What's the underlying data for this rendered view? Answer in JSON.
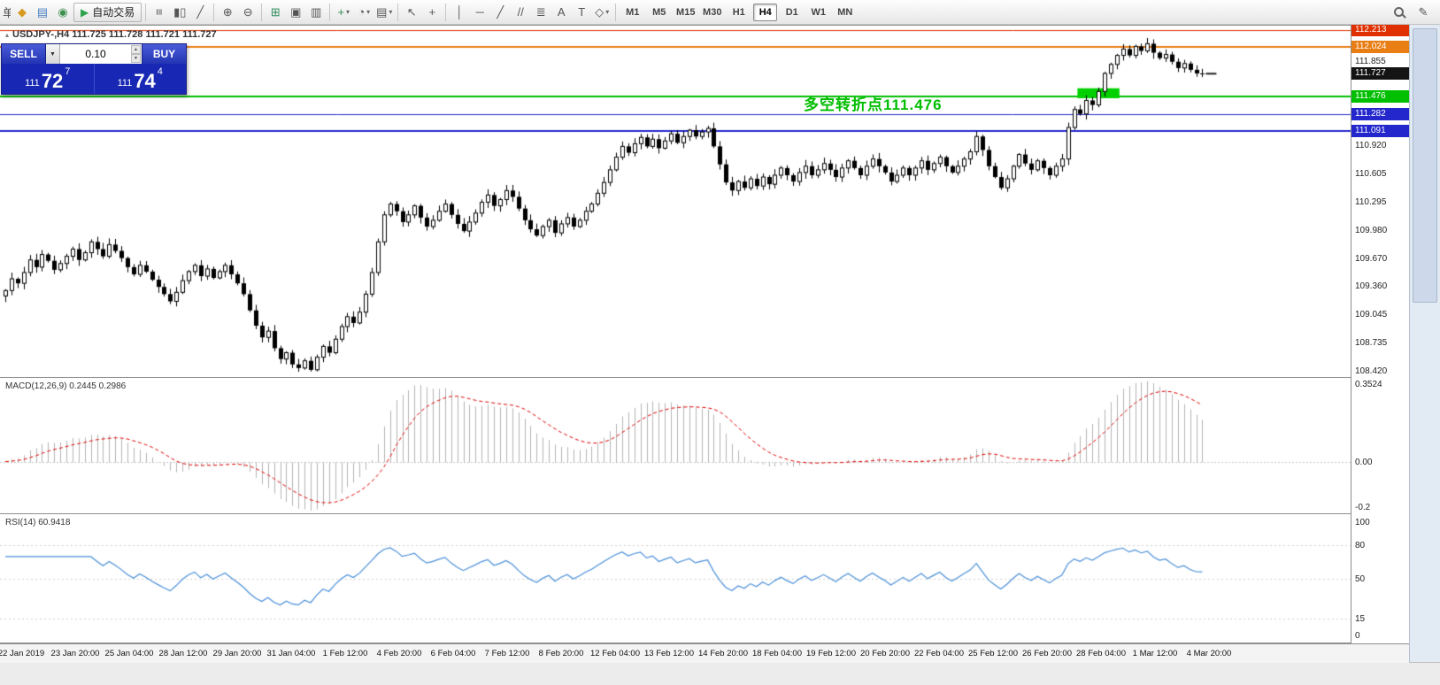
{
  "toolbar": {
    "groups": [
      {
        "items": [
          {
            "name": "new-order-button-cut",
            "glyph": "单",
            "cut": true
          },
          {
            "name": "new-chart-icon",
            "glyph": "◆",
            "color": "#D79A20"
          },
          {
            "name": "profiles-icon",
            "glyph": "▤",
            "color": "#4A7FC0"
          },
          {
            "name": "refresh-icon",
            "glyph": "◉",
            "color": "#3C8F4C"
          },
          {
            "name": "autotrading-button",
            "glyph": "▶",
            "color": "#2EA44F",
            "label": "自动交易"
          }
        ]
      },
      {
        "items": [
          {
            "name": "bar-chart-icon",
            "glyph": "≡",
            "rot": true
          },
          {
            "name": "candlestick-chart-icon",
            "glyph": "▮▯"
          },
          {
            "name": "line-chart-icon",
            "glyph": "╱"
          }
        ]
      },
      {
        "items": [
          {
            "name": "zoom-in-icon",
            "glyph": "⊕"
          },
          {
            "name": "zoom-out-icon",
            "glyph": "⊖"
          }
        ]
      },
      {
        "items": [
          {
            "name": "tile-windows-icon",
            "glyph": "⊞",
            "color": "#2E8B57"
          },
          {
            "name": "cascade-windows-icon",
            "glyph": "▣"
          },
          {
            "name": "auto-scroll-icon",
            "glyph": "▥"
          }
        ]
      },
      {
        "items": [
          {
            "name": "indicators-icon",
            "glyph": "+",
            "color": "#2E8B57",
            "dd": true
          },
          {
            "name": "periods-icon",
            "glyph": "◔",
            "dd": true
          },
          {
            "name": "templates-icon",
            "glyph": "▤",
            "dd": true
          }
        ]
      },
      {
        "items": [
          {
            "name": "cursor-icon",
            "glyph": "↖"
          },
          {
            "name": "crosshair-icon",
            "glyph": "+"
          }
        ]
      },
      {
        "items": [
          {
            "name": "vertical-line-icon",
            "glyph": "│"
          },
          {
            "name": "horizontal-line-icon",
            "glyph": "─"
          },
          {
            "name": "trendline-icon",
            "glyph": "╱"
          },
          {
            "name": "channel-icon",
            "glyph": "//"
          },
          {
            "name": "fibonacci-icon",
            "glyph": "≣"
          },
          {
            "name": "text-icon",
            "glyph": "A"
          },
          {
            "name": "text-label-icon",
            "glyph": "T"
          },
          {
            "name": "shapes-icon",
            "glyph": "◇",
            "dd": true
          }
        ]
      }
    ],
    "timeframes": [
      "M1",
      "M5",
      "M15",
      "M30",
      "H1",
      "H4",
      "D1",
      "W1",
      "MN"
    ],
    "active_timeframe": "H4",
    "right_icons": [
      {
        "name": "search-icon",
        "css": "magnifier"
      },
      {
        "name": "edit-icon",
        "glyph": "✎"
      }
    ]
  },
  "chart": {
    "title": "USDJPY-,H4 111.725 111.728 111.721 111.727",
    "title_icon_glyph": "▴",
    "symbol": "USDJPY-",
    "period": "H4",
    "price_range": {
      "max": 112.26,
      "min": 108.37
    },
    "axis_labels": [
      "111.855",
      "110.920",
      "110.605",
      "110.295",
      "109.980",
      "109.670",
      "109.360",
      "109.045",
      "108.735",
      "108.420"
    ],
    "levels": [
      {
        "price": 112.213,
        "label": "112.213",
        "color": "#E03000",
        "width": 1
      },
      {
        "price": 112.024,
        "label": "112.024",
        "color": "#E87E14",
        "width": 2
      },
      {
        "price": 111.727,
        "label": "111.727",
        "color": "#141414",
        "width": 0,
        "current": true
      },
      {
        "price": 111.476,
        "label": "111.476",
        "color": "#00BE00",
        "width": 2
      },
      {
        "price": 111.282,
        "label": "111.282",
        "color": "#2428CC",
        "width": 1
      },
      {
        "price": 111.091,
        "label": "111.091",
        "color": "#2428CC",
        "width": 2
      }
    ],
    "annotation": {
      "text": "多空转折点111.476",
      "color": "#00BE00"
    },
    "highlight_box": {
      "start_idx": 176,
      "end_idx": 182,
      "price_top": 111.565,
      "price_bottom": 111.455,
      "color": "#00D000"
    },
    "candle_colors": {
      "bull": "#FFFFFF",
      "bear": "#000000",
      "outline": "#000000"
    }
  },
  "trade_panel": {
    "sell_label": "SELL",
    "buy_label": "BUY",
    "volume": "0.10",
    "dropdown_glyph": "▼",
    "volume_up_glyph": "▲",
    "volume_down_glyph": "▼",
    "sell_price": {
      "prefix": "111",
      "big": "72",
      "sup": "7"
    },
    "buy_price": {
      "prefix": "111",
      "big": "74",
      "sup": "4"
    }
  },
  "chart_data": {
    "type": "candlestick",
    "symbol": "USDJPY",
    "timeframe": "H4",
    "x_labels": [
      "22 Jan 2019",
      "23 Jan 20:00",
      "25 Jan 04:00",
      "28 Jan 12:00",
      "29 Jan 20:00",
      "31 Jan 04:00",
      "1 Feb 12:00",
      "4 Feb 20:00",
      "6 Feb 04:00",
      "7 Feb 12:00",
      "8 Feb 20:00",
      "12 Feb 04:00",
      "13 Feb 12:00",
      "14 Feb 20:00",
      "18 Feb 04:00",
      "19 Feb 12:00",
      "20 Feb 20:00",
      "22 Feb 04:00",
      "25 Feb 12:00",
      "26 Feb 20:00",
      "28 Feb 04:00",
      "1 Mar 12:00",
      "4 Mar 20:00"
    ],
    "ohlc_current": {
      "open": 111.725,
      "high": 111.728,
      "low": 111.721,
      "close": 111.727
    },
    "closes": [
      109.32,
      109.45,
      109.4,
      109.52,
      109.66,
      109.58,
      109.72,
      109.65,
      109.55,
      109.62,
      109.7,
      109.78,
      109.66,
      109.74,
      109.86,
      109.78,
      109.7,
      109.83,
      109.76,
      109.68,
      109.58,
      109.5,
      109.6,
      109.53,
      109.44,
      109.36,
      109.28,
      109.2,
      109.3,
      109.43,
      109.53,
      109.6,
      109.48,
      109.56,
      109.46,
      109.53,
      109.6,
      109.5,
      109.4,
      109.28,
      109.1,
      108.93,
      108.8,
      108.87,
      108.68,
      108.56,
      108.63,
      108.5,
      108.46,
      108.54,
      108.44,
      108.58,
      108.7,
      108.63,
      108.78,
      108.92,
      109.03,
      108.96,
      109.08,
      109.28,
      109.52,
      109.86,
      110.16,
      110.28,
      110.2,
      110.08,
      110.16,
      110.26,
      110.13,
      110.03,
      110.1,
      110.2,
      110.28,
      110.16,
      110.06,
      109.98,
      110.08,
      110.18,
      110.3,
      110.38,
      110.26,
      110.33,
      110.43,
      110.36,
      110.23,
      110.1,
      110.0,
      109.93,
      110.03,
      110.1,
      109.96,
      110.06,
      110.13,
      110.03,
      110.1,
      110.2,
      110.28,
      110.4,
      110.52,
      110.66,
      110.8,
      110.92,
      110.85,
      110.95,
      111.02,
      110.92,
      111.0,
      110.9,
      110.98,
      111.06,
      110.96,
      111.03,
      111.1,
      111.03,
      111.08,
      111.12,
      110.92,
      110.72,
      110.52,
      110.43,
      110.53,
      110.46,
      110.56,
      110.48,
      110.58,
      110.5,
      110.6,
      110.68,
      110.6,
      110.53,
      110.63,
      110.7,
      110.6,
      110.66,
      110.73,
      110.66,
      110.58,
      110.68,
      110.76,
      110.68,
      110.6,
      110.7,
      110.78,
      110.7,
      110.63,
      110.53,
      110.6,
      110.68,
      110.6,
      110.68,
      110.76,
      110.66,
      110.73,
      110.8,
      110.7,
      110.63,
      110.7,
      110.78,
      110.86,
      111.03,
      110.88,
      110.7,
      110.58,
      110.46,
      110.56,
      110.7,
      110.83,
      110.73,
      110.66,
      110.76,
      110.68,
      110.6,
      110.7,
      110.78,
      111.13,
      111.33,
      111.28,
      111.43,
      111.38,
      111.53,
      111.73,
      111.83,
      111.93,
      112.0,
      111.93,
      112.03,
      111.98,
      112.06,
      111.96,
      111.9,
      111.94,
      111.86,
      111.79,
      111.84,
      111.77,
      111.73,
      111.727
    ],
    "indicators": [
      {
        "name": "MACD",
        "header": "MACD(12,26,9) 0.2445 0.2986",
        "params": [
          12,
          26,
          9
        ],
        "values": [
          0.2445,
          0.2986
        ],
        "range": {
          "max": 0.3524,
          "min": -0.22
        },
        "axis": [
          {
            "text": "0.3524",
            "v": 0.3524
          },
          {
            "text": "0.00",
            "v": 0
          },
          {
            "text": "-0.2",
            "v": -0.2
          }
        ],
        "colors": {
          "histogram": "#B4B4B4",
          "signal": "#E00000"
        }
      },
      {
        "name": "RSI",
        "header": "RSI(14) 60.9418",
        "params": [
          14
        ],
        "values": [
          60.9418
        ],
        "range": {
          "max": 100,
          "min": 0
        },
        "axis": [
          {
            "text": "100",
            "v": 100
          },
          {
            "text": "80",
            "v": 80
          },
          {
            "text": "50",
            "v": 50
          },
          {
            "text": "15",
            "v": 15
          },
          {
            "text": "0",
            "v": 0
          }
        ],
        "levels": [
          80,
          50,
          15
        ],
        "color": "#4A90D9"
      }
    ]
  }
}
